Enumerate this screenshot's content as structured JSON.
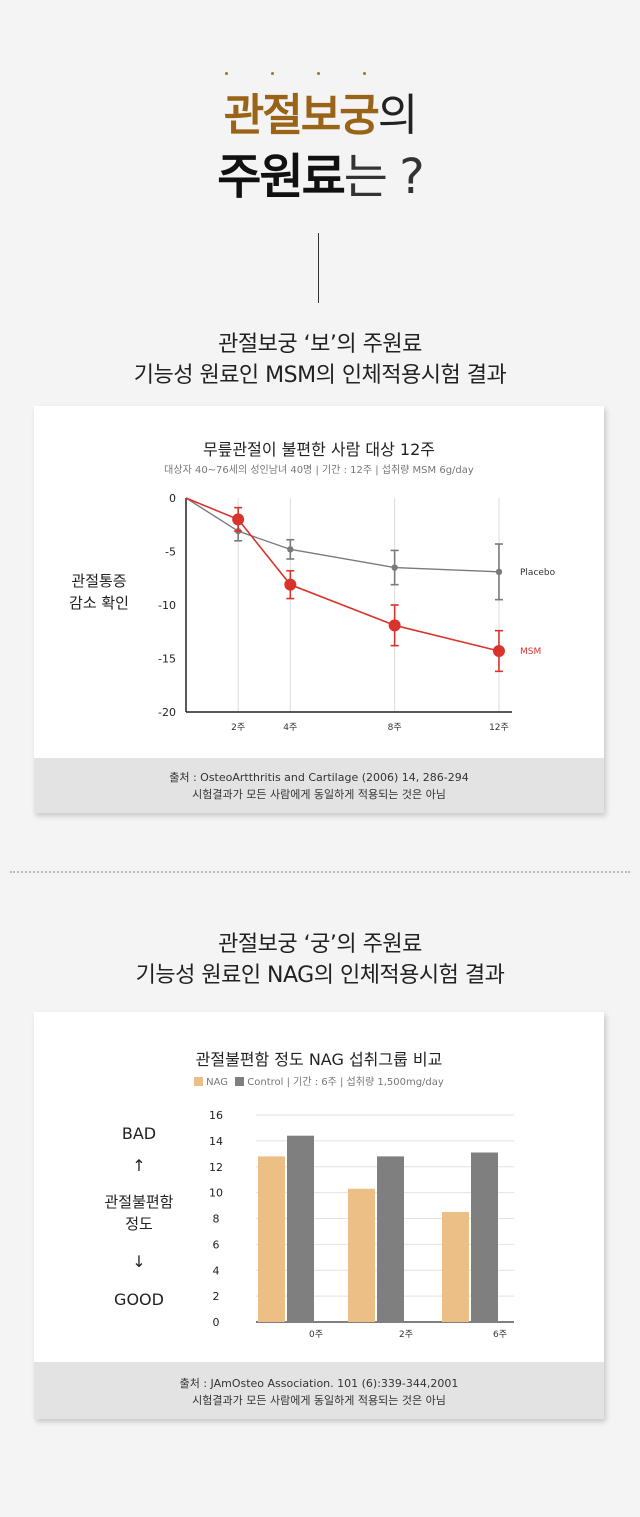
{
  "hero": {
    "line1_highlight": "관절보궁",
    "line1_rest": "의",
    "line2_highlight": "주원료",
    "line2_rest": "는 ?"
  },
  "section1": {
    "title_line1": "관절보궁 ‘보’의 주원료",
    "title_line2": "기능성 원료인 MSM의 인체적용시험 결과",
    "chart_title": "무릎관절이 불편한 사람 대상 12주",
    "chart_subtitle": "대상자 40~76세의 성인남녀 40명 | 기간 : 12주 | 섭취량 MSM 6g/day",
    "ylabel_line1": "관절통증",
    "ylabel_line2": "감소 확인",
    "source_line1": "출처 : OsteoArtthritis and Cartilage (2006) 14, 286-294",
    "source_line2": "시험결과가 모든 사람에게 동일하게 적용되는 것은 아님"
  },
  "section2": {
    "title_line1": "관절보궁 ‘궁’의 주원료",
    "title_line2": "기능성 원료인 NAG의 인체적용시험 결과",
    "chart_title": "관절불편함 정도 NAG 섭취그룹 비교",
    "legend_nag": "NAG",
    "legend_control": "Control",
    "legend_rest": "| 기간 : 6주 | 섭취량 1,500mg/day",
    "side_top": "BAD",
    "side_up_arrow": "↑",
    "side_mid_line1": "관절불편함",
    "side_mid_line2": "정도",
    "side_down_arrow": "↓",
    "side_bottom": "GOOD",
    "source_line1": "출처 : JAmOsteo Association. 101 (6):339-344,2001",
    "source_line2": "시험결과가 모든 사람에게 동일하게 적용되는 것은 아님"
  },
  "colors": {
    "gold": "#9a6418",
    "msm": "#d9342b",
    "placebo": "#7a7a7a",
    "nag": "#ebbf86",
    "control": "#7f7f7f"
  },
  "chart_data": [
    {
      "type": "line",
      "title": "무릎관절이 불편한 사람 대상 12주",
      "categories": [
        "2주",
        "4주",
        "8주",
        "12주"
      ],
      "x": [
        0,
        2,
        4,
        8,
        12
      ],
      "ylim": [
        -20,
        0
      ],
      "yticks": [
        0,
        -5,
        -10,
        -15,
        -20
      ],
      "grid": true,
      "series": [
        {
          "name": "Placebo",
          "values": [
            0,
            -3.1,
            -4.8,
            -6.5,
            -6.9
          ],
          "err": [
            0,
            0.9,
            0.9,
            1.6,
            2.6
          ]
        },
        {
          "name": "MSM",
          "values": [
            0,
            -2,
            -8.1,
            -11.9,
            -14.3
          ],
          "err": [
            0,
            1.1,
            1.3,
            1.9,
            1.9
          ]
        }
      ]
    },
    {
      "type": "bar",
      "title": "관절불편함 정도 NAG 섭취그룹 비교",
      "categories": [
        "0주",
        "2주",
        "6주"
      ],
      "ylim": [
        0,
        16
      ],
      "yticks": [
        0,
        2,
        4,
        6,
        8,
        10,
        12,
        14,
        16
      ],
      "grid": true,
      "series": [
        {
          "name": "NAG",
          "values": [
            12.8,
            10.3,
            8.5
          ]
        },
        {
          "name": "Control",
          "values": [
            14.4,
            12.8,
            13.1
          ]
        }
      ]
    }
  ]
}
